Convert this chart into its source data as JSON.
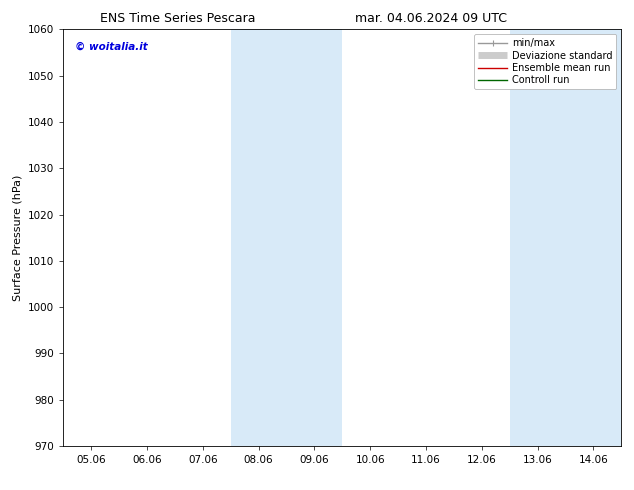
{
  "title_left": "ENS Time Series Pescara",
  "title_right": "mar. 04.06.2024 09 UTC",
  "ylabel": "Surface Pressure (hPa)",
  "ylim": [
    970,
    1060
  ],
  "yticks": [
    970,
    980,
    990,
    1000,
    1010,
    1020,
    1030,
    1040,
    1050,
    1060
  ],
  "xtick_labels": [
    "05.06",
    "06.06",
    "07.06",
    "08.06",
    "09.06",
    "10.06",
    "11.06",
    "12.06",
    "13.06",
    "14.06"
  ],
  "xtick_positions": [
    0,
    1,
    2,
    3,
    4,
    5,
    6,
    7,
    8,
    9
  ],
  "xlim": [
    -0.5,
    9.5
  ],
  "shaded_bands": [
    {
      "x_start": 2.5,
      "x_end": 4.5,
      "color": "#d8eaf8"
    },
    {
      "x_start": 7.5,
      "x_end": 9.5,
      "color": "#d8eaf8"
    }
  ],
  "watermark": "© woitalia.it",
  "watermark_color": "#0000dd",
  "legend_items": [
    {
      "label": "min/max",
      "color": "#999999",
      "lw": 1.0
    },
    {
      "label": "Deviazione standard",
      "color": "#cccccc",
      "lw": 5
    },
    {
      "label": "Ensemble mean run",
      "color": "#cc0000",
      "lw": 1.0
    },
    {
      "label": "Controll run",
      "color": "#006600",
      "lw": 1.0
    }
  ],
  "background_color": "#ffffff",
  "title_fontsize": 9,
  "tick_fontsize": 7.5,
  "ylabel_fontsize": 8,
  "watermark_fontsize": 7.5,
  "legend_fontsize": 7
}
